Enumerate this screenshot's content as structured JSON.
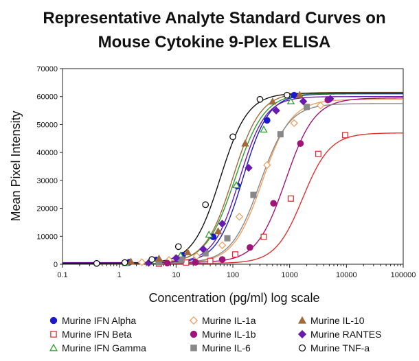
{
  "chart_data": {
    "type": "line",
    "title_lines": [
      "Representative Analyte Standard Curves on",
      "Mouse Cytokine 9-Plex ELISA"
    ],
    "xlabel": "Concentration (pg/ml) log scale",
    "ylabel": "Mean Pixel Intensity",
    "x_scale": "log",
    "xlim": [
      0.1,
      100000
    ],
    "ylim": [
      0,
      70000
    ],
    "x_ticks": [
      0.1,
      1,
      10,
      100,
      1000,
      10000,
      100000
    ],
    "x_tick_labels": [
      "0.1",
      "1",
      "10",
      "100",
      "1000",
      "10000",
      "100000"
    ],
    "y_ticks": [
      0,
      10000,
      20000,
      30000,
      40000,
      50000,
      60000,
      70000
    ],
    "y_tick_labels": [
      "0",
      "10000",
      "20000",
      "30000",
      "40000",
      "50000",
      "60000",
      "70000"
    ],
    "grid": false,
    "legend_position": "bottom",
    "series": [
      {
        "name": "Murine IFN Alpha",
        "color": "#1a1acc",
        "marker": "filled-circle",
        "curve": {
          "bottom": 400,
          "top": 61000,
          "ec50": 150,
          "hill": 1.9
        },
        "points": [
          [
            1.5,
            700
          ],
          [
            4.5,
            1500
          ],
          [
            13,
            3200
          ],
          [
            45,
            9800
          ],
          [
            120,
            28000
          ],
          [
            400,
            51500
          ],
          [
            1200,
            60500
          ]
        ]
      },
      {
        "name": "Murine IFN Beta",
        "color": "#e23030",
        "marker": "open-square",
        "curve": {
          "bottom": 300,
          "top": 47000,
          "ec50": 1700,
          "hill": 1.8
        },
        "points": [
          [
            5,
            200
          ],
          [
            15,
            600
          ],
          [
            40,
            1200
          ],
          [
            110,
            3500
          ],
          [
            350,
            9800
          ],
          [
            1050,
            23500
          ],
          [
            3200,
            39500
          ],
          [
            9500,
            46200
          ]
        ]
      },
      {
        "name": "Murine IFN Gamma",
        "color": "#2e9e2e",
        "marker": "open-triangle",
        "curve": {
          "bottom": 300,
          "top": 61200,
          "ec50": 110,
          "hill": 1.7
        },
        "points": [
          [
            1.3,
            400
          ],
          [
            4,
            1200
          ],
          [
            12,
            3100
          ],
          [
            38,
            10600
          ],
          [
            115,
            28300
          ],
          [
            350,
            48200
          ],
          [
            1050,
            58300
          ]
        ]
      },
      {
        "name": "Murine IL-1a",
        "color": "#f0a060",
        "marker": "open-diamond",
        "curve": {
          "bottom": 300,
          "top": 59000,
          "ec50": 330,
          "hill": 1.7
        },
        "points": [
          [
            2.5,
            700
          ],
          [
            7.5,
            1500
          ],
          [
            23,
            2900
          ],
          [
            65,
            6800
          ],
          [
            130,
            17000
          ],
          [
            400,
            35500
          ],
          [
            1200,
            50500
          ],
          [
            3500,
            56800
          ]
        ]
      },
      {
        "name": "Murine IL-1b",
        "color": "#a0147a",
        "marker": "filled-circle",
        "curve": {
          "bottom": 600,
          "top": 59500,
          "ec50": 850,
          "hill": 1.7
        },
        "points": [
          [
            7,
            400
          ],
          [
            22,
            700
          ],
          [
            65,
            1700
          ],
          [
            200,
            6000
          ],
          [
            520,
            21800
          ],
          [
            1550,
            43200
          ],
          [
            4700,
            58800
          ]
        ]
      },
      {
        "name": "Murine IL-6",
        "color": "#888888",
        "marker": "filled-square",
        "curve": {
          "bottom": 400,
          "top": 57500,
          "ec50": 300,
          "hill": 1.7
        },
        "points": [
          [
            5,
            700
          ],
          [
            12.5,
            1700
          ],
          [
            33,
            3900
          ],
          [
            80,
            9300
          ],
          [
            230,
            24800
          ],
          [
            690,
            46500
          ],
          [
            2000,
            56300
          ]
        ]
      },
      {
        "name": "Murine IL-10",
        "color": "#a06a3a",
        "marker": "filled-triangle",
        "curve": {
          "bottom": 400,
          "top": 61500,
          "ec50": 100,
          "hill": 1.8
        },
        "points": [
          [
            1.6,
            900
          ],
          [
            5,
            2000
          ],
          [
            16,
            4300
          ],
          [
            55,
            11800
          ],
          [
            165,
            43200
          ],
          [
            500,
            58200
          ],
          [
            1500,
            60600
          ]
        ]
      },
      {
        "name": "Murine RANTES",
        "color": "#6a1ab0",
        "marker": "filled-diamond",
        "curve": {
          "bottom": 500,
          "top": 60000,
          "ec50": 130,
          "hill": 1.9
        },
        "points": [
          [
            3.3,
            500
          ],
          [
            10,
            2200
          ],
          [
            30,
            5400
          ],
          [
            65,
            14500
          ],
          [
            190,
            34500
          ],
          [
            580,
            55000
          ],
          [
            1740,
            58300
          ],
          [
            5200,
            59200
          ]
        ]
      },
      {
        "name": "Murine TNF-a",
        "color": "#111111",
        "marker": "open-circle",
        "curve": {
          "bottom": 300,
          "top": 61300,
          "ec50": 60,
          "hill": 1.8
        },
        "points": [
          [
            0.4,
            300
          ],
          [
            1.25,
            600
          ],
          [
            3.75,
            1700
          ],
          [
            11,
            6300
          ],
          [
            33,
            21300
          ],
          [
            100,
            45600
          ],
          [
            300,
            59000
          ],
          [
            900,
            60500
          ]
        ]
      }
    ]
  }
}
